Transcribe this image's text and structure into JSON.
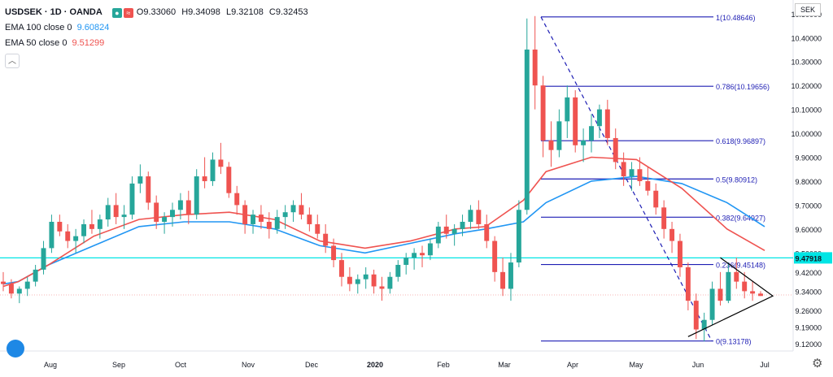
{
  "header": {
    "symbol": "USDSEK · 1D · OANDA",
    "open": "O9.33060",
    "high": "H9.34098",
    "low": "L9.32108",
    "close": "C9.32453",
    "ema100_label": "EMA 100 close 0",
    "ema100_value": "9.60824",
    "ema50_label": "EMA 50 close 0",
    "ema50_value": "9.51299",
    "collapse_icon": "chevron-up-icon"
  },
  "currency": "SEK",
  "colors": {
    "up": "#26a69a",
    "down": "#ef5350",
    "ema100": "#2196f3",
    "ema50": "#ef5350",
    "fib": "#1e1eb4",
    "hline": "#00e5e5",
    "price_line": "#f7b5b5"
  },
  "chart_data": {
    "type": "candlestick",
    "instrument": "USDSEK",
    "timeframe": "1D",
    "ylim": [
      9.09,
      10.53
    ],
    "y_ticks": [
      "10.50000",
      "10.40000",
      "10.30000",
      "10.20000",
      "10.10000",
      "10.00000",
      "9.90000",
      "9.80000",
      "9.70000",
      "9.60000",
      "9.50000",
      "9.42000",
      "9.34000",
      "9.26000",
      "9.19000",
      "9.12000"
    ],
    "x_ticks": [
      "Aug",
      "Sep",
      "Oct",
      "Nov",
      "Dec",
      "2020",
      "Feb",
      "Mar",
      "Apr",
      "May",
      "Jun",
      "Jul"
    ],
    "last_price": 9.32453,
    "horizontal_line": {
      "value": 9.47918,
      "label": "9.47918"
    },
    "ema100": [
      [
        0,
        9.37
      ],
      [
        10,
        9.38
      ],
      [
        30,
        9.45
      ],
      [
        60,
        9.53
      ],
      [
        90,
        9.61
      ],
      [
        120,
        9.63
      ],
      [
        150,
        9.63
      ],
      [
        180,
        9.6
      ],
      [
        210,
        9.53
      ],
      [
        240,
        9.5
      ],
      [
        270,
        9.54
      ],
      [
        300,
        9.58
      ],
      [
        320,
        9.6
      ],
      [
        345,
        9.63
      ],
      [
        360,
        9.71
      ],
      [
        390,
        9.8
      ],
      [
        420,
        9.82
      ],
      [
        450,
        9.79
      ],
      [
        480,
        9.71
      ],
      [
        505,
        9.61
      ]
    ],
    "ema50": [
      [
        0,
        9.36
      ],
      [
        10,
        9.38
      ],
      [
        30,
        9.45
      ],
      [
        60,
        9.57
      ],
      [
        90,
        9.64
      ],
      [
        120,
        9.66
      ],
      [
        150,
        9.67
      ],
      [
        180,
        9.64
      ],
      [
        210,
        9.55
      ],
      [
        240,
        9.52
      ],
      [
        270,
        9.55
      ],
      [
        300,
        9.6
      ],
      [
        320,
        9.61
      ],
      [
        345,
        9.72
      ],
      [
        360,
        9.84
      ],
      [
        390,
        9.9
      ],
      [
        420,
        9.89
      ],
      [
        450,
        9.77
      ],
      [
        480,
        9.6
      ],
      [
        505,
        9.51
      ]
    ],
    "fibonacci": [
      {
        "ratio": "1",
        "value": 10.48646,
        "label": "1(10.48646)"
      },
      {
        "ratio": "0.786",
        "value": 10.19656,
        "label": "0.786(10.19656)"
      },
      {
        "ratio": "0.618",
        "value": 9.96897,
        "label": "0.618(9.96897)"
      },
      {
        "ratio": "0.5",
        "value": 9.80912,
        "label": "0.5(9.80912)"
      },
      {
        "ratio": "0.382",
        "value": 9.64927,
        "label": "0.382(9.64927)"
      },
      {
        "ratio": "0.236",
        "value": 9.45148,
        "label": "0.236(9.45148)"
      },
      {
        "ratio": "0",
        "value": 9.13178,
        "label": "0(9.13178)"
      }
    ],
    "candles": [
      [
        9.38,
        9.42,
        9.34,
        9.37
      ],
      [
        9.37,
        9.39,
        9.31,
        9.33
      ],
      [
        9.33,
        9.36,
        9.29,
        9.35
      ],
      [
        9.35,
        9.4,
        9.32,
        9.38
      ],
      [
        9.38,
        9.45,
        9.36,
        9.43
      ],
      [
        9.43,
        9.55,
        9.41,
        9.52
      ],
      [
        9.52,
        9.66,
        9.5,
        9.63
      ],
      [
        9.63,
        9.66,
        9.57,
        9.59
      ],
      [
        9.59,
        9.62,
        9.52,
        9.55
      ],
      [
        9.55,
        9.6,
        9.5,
        9.57
      ],
      [
        9.57,
        9.64,
        9.54,
        9.62
      ],
      [
        9.62,
        9.68,
        9.58,
        9.6
      ],
      [
        9.6,
        9.66,
        9.56,
        9.64
      ],
      [
        9.64,
        9.73,
        9.61,
        9.7
      ],
      [
        9.7,
        9.75,
        9.62,
        9.65
      ],
      [
        9.65,
        9.7,
        9.6,
        9.66
      ],
      [
        9.66,
        9.82,
        9.64,
        9.79
      ],
      [
        9.79,
        9.87,
        9.75,
        9.82
      ],
      [
        9.82,
        9.84,
        9.68,
        9.71
      ],
      [
        9.71,
        9.74,
        9.6,
        9.63
      ],
      [
        9.63,
        9.67,
        9.58,
        9.65
      ],
      [
        9.65,
        9.71,
        9.61,
        9.68
      ],
      [
        9.68,
        9.75,
        9.64,
        9.72
      ],
      [
        9.72,
        9.76,
        9.62,
        9.66
      ],
      [
        9.66,
        9.85,
        9.64,
        9.82
      ],
      [
        9.82,
        9.9,
        9.77,
        9.8
      ],
      [
        9.8,
        9.92,
        9.78,
        9.89
      ],
      [
        9.89,
        9.96,
        9.83,
        9.86
      ],
      [
        9.86,
        9.88,
        9.73,
        9.75
      ],
      [
        9.75,
        9.78,
        9.66,
        9.7
      ],
      [
        9.7,
        9.72,
        9.58,
        9.62
      ],
      [
        9.62,
        9.68,
        9.58,
        9.66
      ],
      [
        9.66,
        9.7,
        9.6,
        9.63
      ],
      [
        9.63,
        9.67,
        9.56,
        9.6
      ],
      [
        9.6,
        9.68,
        9.58,
        9.65
      ],
      [
        9.65,
        9.7,
        9.6,
        9.67
      ],
      [
        9.67,
        9.72,
        9.63,
        9.7
      ],
      [
        9.7,
        9.75,
        9.64,
        9.66
      ],
      [
        9.66,
        9.69,
        9.59,
        9.62
      ],
      [
        9.62,
        9.66,
        9.56,
        9.58
      ],
      [
        9.58,
        9.62,
        9.5,
        9.53
      ],
      [
        9.53,
        9.56,
        9.44,
        9.47
      ],
      [
        9.47,
        9.5,
        9.36,
        9.4
      ],
      [
        9.4,
        9.44,
        9.34,
        9.37
      ],
      [
        9.37,
        9.41,
        9.33,
        9.39
      ],
      [
        9.39,
        9.44,
        9.35,
        9.41
      ],
      [
        9.41,
        9.43,
        9.33,
        9.36
      ],
      [
        9.36,
        9.4,
        9.3,
        9.35
      ],
      [
        9.35,
        9.42,
        9.33,
        9.4
      ],
      [
        9.4,
        9.47,
        9.38,
        9.45
      ],
      [
        9.45,
        9.5,
        9.41,
        9.48
      ],
      [
        9.48,
        9.52,
        9.43,
        9.5
      ],
      [
        9.5,
        9.53,
        9.44,
        9.49
      ],
      [
        9.49,
        9.56,
        9.47,
        9.54
      ],
      [
        9.54,
        9.63,
        9.52,
        9.61
      ],
      [
        9.61,
        9.66,
        9.56,
        9.58
      ],
      [
        9.58,
        9.62,
        9.53,
        9.6
      ],
      [
        9.6,
        9.66,
        9.57,
        9.63
      ],
      [
        9.63,
        9.7,
        9.6,
        9.68
      ],
      [
        9.68,
        9.72,
        9.6,
        9.62
      ],
      [
        9.62,
        9.66,
        9.52,
        9.55
      ],
      [
        9.55,
        9.57,
        9.38,
        9.42
      ],
      [
        9.42,
        9.48,
        9.32,
        9.35
      ],
      [
        9.35,
        9.5,
        9.3,
        9.46
      ],
      [
        9.46,
        9.72,
        9.44,
        9.68
      ],
      [
        9.68,
        10.48,
        9.66,
        10.35
      ],
      [
        10.35,
        10.49,
        10.1,
        10.2
      ],
      [
        10.2,
        10.24,
        9.9,
        9.97
      ],
      [
        9.97,
        10.05,
        9.86,
        9.93
      ],
      [
        9.93,
        10.1,
        9.9,
        10.05
      ],
      [
        10.05,
        10.2,
        9.98,
        10.15
      ],
      [
        10.15,
        10.18,
        9.92,
        9.95
      ],
      [
        9.95,
        10.02,
        9.88,
        9.97
      ],
      [
        9.97,
        10.08,
        9.92,
        10.03
      ],
      [
        10.03,
        10.12,
        9.98,
        10.1
      ],
      [
        10.1,
        10.14,
        9.95,
        9.98
      ],
      [
        9.98,
        10.02,
        9.85,
        9.88
      ],
      [
        9.88,
        9.92,
        9.78,
        9.82
      ],
      [
        9.82,
        9.88,
        9.76,
        9.85
      ],
      [
        9.85,
        9.9,
        9.78,
        9.8
      ],
      [
        9.8,
        9.86,
        9.74,
        9.76
      ],
      [
        9.76,
        9.79,
        9.66,
        9.69
      ],
      [
        9.69,
        9.72,
        9.56,
        9.6
      ],
      [
        9.6,
        9.63,
        9.5,
        9.55
      ],
      [
        9.55,
        9.58,
        9.4,
        9.44
      ],
      [
        9.44,
        9.46,
        9.26,
        9.3
      ],
      [
        9.3,
        9.33,
        9.14,
        9.18
      ],
      [
        9.18,
        9.25,
        9.13,
        9.22
      ],
      [
        9.22,
        9.38,
        9.2,
        9.35
      ],
      [
        9.35,
        9.42,
        9.28,
        9.3
      ],
      [
        9.3,
        9.46,
        9.29,
        9.42
      ],
      [
        9.42,
        9.48,
        9.35,
        9.38
      ],
      [
        9.38,
        9.42,
        9.31,
        9.34
      ],
      [
        9.34,
        9.38,
        9.3,
        9.33
      ],
      [
        9.33,
        9.34,
        9.32,
        9.32
      ]
    ]
  }
}
